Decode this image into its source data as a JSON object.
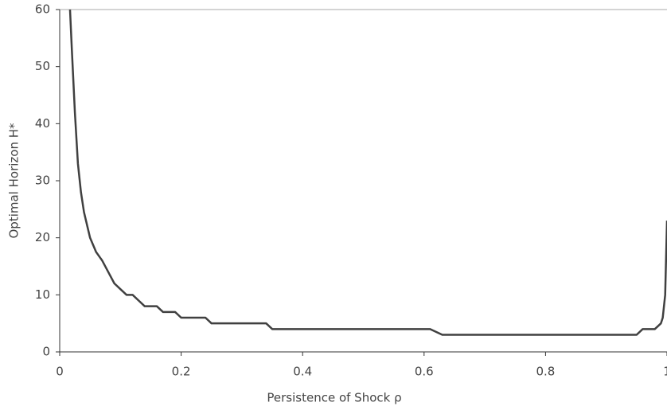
{
  "chart_data": {
    "type": "line",
    "xlabel": "Persistence of Shock  ρ",
    "ylabel": "Optimal Horizon H*",
    "x": [
      0.017,
      0.02,
      0.025,
      0.03,
      0.035,
      0.04,
      0.05,
      0.06,
      0.07,
      0.08,
      0.09,
      0.1,
      0.11,
      0.12,
      0.13,
      0.14,
      0.16,
      0.17,
      0.19,
      0.2,
      0.24,
      0.25,
      0.34,
      0.35,
      0.61,
      0.63,
      0.95,
      0.96,
      0.98,
      0.99,
      0.993,
      0.997,
      1.0
    ],
    "series": [
      {
        "name": "H*",
        "color": "#404040",
        "values": [
          60,
          53,
          42,
          33,
          28,
          24.5,
          20,
          17.5,
          16,
          14,
          12,
          11,
          10,
          10,
          9,
          8,
          8,
          7,
          7,
          6,
          6,
          5,
          5,
          4,
          4,
          3,
          3,
          4,
          4,
          5,
          6,
          10,
          23
        ]
      }
    ],
    "xlim": [
      0,
      1
    ],
    "ylim": [
      0,
      60
    ],
    "xticks": [
      0,
      0.2,
      0.4,
      0.6,
      0.8,
      1
    ],
    "yticks": [
      0,
      10,
      20,
      30,
      40,
      50,
      60
    ]
  }
}
